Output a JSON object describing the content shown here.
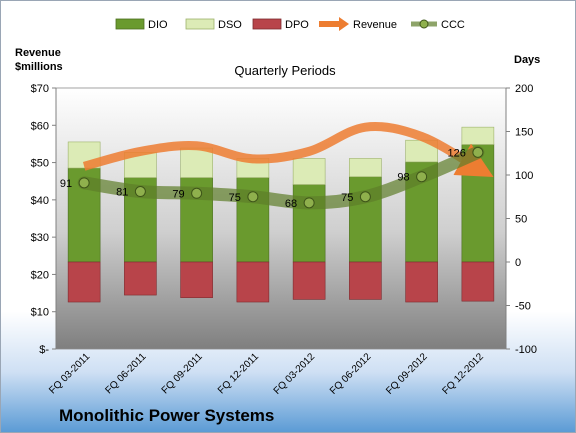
{
  "company_name": "Monolithic Power Systems",
  "chart_data": {
    "type": "bar",
    "title": "Quarterly Periods",
    "left_axis_title": "Revenue\n$millions",
    "right_axis_title": "Days",
    "left_axis": {
      "min": 0,
      "max": 70,
      "ticks": [
        "$-",
        "$10",
        "$20",
        "$30",
        "$40",
        "$50",
        "$60",
        "$70"
      ]
    },
    "right_axis": {
      "min": -100,
      "max": 200,
      "ticks": [
        "-100",
        "-50",
        "0",
        "50",
        "100",
        "150",
        "200"
      ]
    },
    "categories": [
      "FQ 03-2011",
      "FQ 06-2011",
      "FQ 09-2011",
      "FQ 12-2011",
      "FQ 03-2012",
      "FQ 06-2012",
      "FQ 09-2012",
      "FQ 12-2012"
    ],
    "legend": [
      "DIO",
      "DSO",
      "DPO",
      "Revenue",
      "CCC"
    ],
    "legend_position": "top",
    "grid": false,
    "series": [
      {
        "name": "DIO",
        "axis": "right",
        "values": [
          108,
          97,
          97,
          97,
          89,
          98,
          115,
          135
        ],
        "color": "#6a9a2e"
      },
      {
        "name": "DSO",
        "axis": "right",
        "values": [
          30,
          29,
          34,
          22,
          30,
          21,
          25,
          20
        ],
        "color": "#dcebb6"
      },
      {
        "name": "DPO",
        "axis": "right",
        "values": [
          -46,
          -38,
          -41,
          -46,
          -43,
          -43,
          -46,
          -45
        ],
        "color": "#b8444a"
      },
      {
        "name": "Revenue",
        "axis": "left",
        "values": [
          49,
          53,
          54.5,
          51,
          53,
          59.5,
          57,
          48.5
        ],
        "color": "#ed7d31"
      },
      {
        "name": "CCC",
        "axis": "right",
        "values": [
          91,
          81,
          79,
          75,
          68,
          75,
          98,
          126
        ],
        "color": "#5e7d2a"
      }
    ],
    "ccc_labels": [
      "91",
      "81",
      "79",
      "75",
      "68",
      "75",
      "98",
      "126"
    ]
  }
}
